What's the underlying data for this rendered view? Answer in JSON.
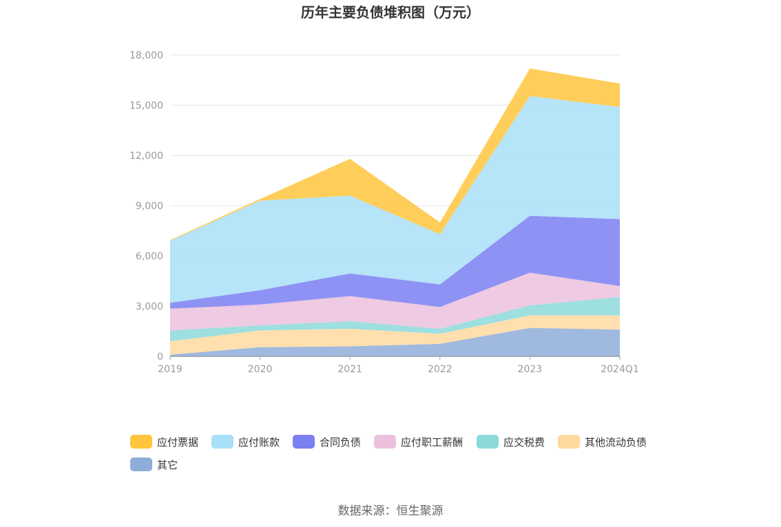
{
  "chart_data": {
    "type": "area",
    "stacked": true,
    "title": "历年主要负债堆积图（万元）",
    "categories": [
      "2019",
      "2020",
      "2021",
      "2022",
      "2023",
      "2024Q1"
    ],
    "ylim": [
      0,
      18000
    ],
    "yticks": [
      "0",
      "3,000",
      "6,000",
      "9,000",
      "12,000",
      "15,000",
      "18,000"
    ],
    "grid": true,
    "legend_position": "bottom",
    "series": [
      {
        "name": "其它",
        "color": "#8fadd9",
        "values": [
          100,
          550,
          600,
          750,
          1700,
          1600
        ]
      },
      {
        "name": "其他流动负债",
        "color": "#ffd9a0",
        "values": [
          800,
          1000,
          1050,
          600,
          750,
          850
        ]
      },
      {
        "name": "应交税费",
        "color": "#8dd9da",
        "values": [
          650,
          300,
          450,
          300,
          600,
          1100
        ]
      },
      {
        "name": "应付职工薪酬",
        "color": "#ebc1de",
        "values": [
          1300,
          1250,
          1500,
          1300,
          1950,
          650
        ]
      },
      {
        "name": "合同负债",
        "color": "#7a7ff2",
        "values": [
          350,
          850,
          1350,
          1350,
          3400,
          4000
        ]
      },
      {
        "name": "应付账款",
        "color": "#a9dff7",
        "values": [
          3700,
          5350,
          4650,
          3000,
          7150,
          6700
        ]
      },
      {
        "name": "应付票据",
        "color": "#ffc53d",
        "values": [
          50,
          100,
          2200,
          700,
          1650,
          1400
        ]
      }
    ]
  },
  "source": "数据来源：恒生聚源"
}
